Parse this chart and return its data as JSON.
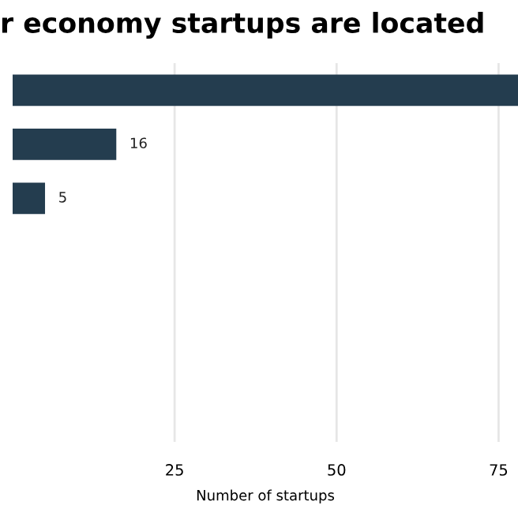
{
  "chart_data": {
    "type": "bar",
    "orientation": "horizontal",
    "title": "r economy startups are located",
    "xlabel": "Number of startups",
    "categories": [
      null,
      null,
      null,
      null,
      null,
      null,
      null
    ],
    "values": [
      78,
      16,
      5,
      null,
      null,
      null,
      null
    ],
    "value_labels": [
      null,
      "16",
      "5",
      null,
      null,
      null,
      null
    ],
    "color": "#243d4f",
    "xlim": [
      0,
      78
    ],
    "xticks": [
      25,
      50,
      75
    ],
    "grid": "x",
    "tick_labels": "x"
  }
}
